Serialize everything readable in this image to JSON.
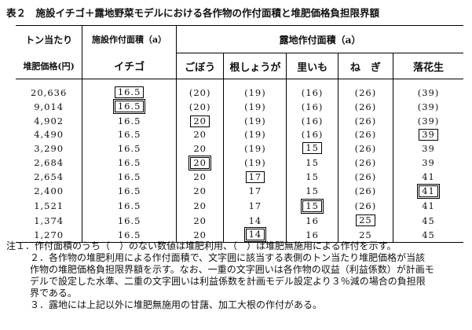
{
  "title": "表２　施設イチゴ＋露地野菜モデルにおける各作物の作付面積と堆肥価格負担限界額",
  "table": {
    "header": {
      "row1": [
        "トン当たり",
        "施設作付面積（a）",
        "露地作付面積（a）"
      ],
      "row2": [
        "堆肥価格(円)",
        "イチゴ",
        "ごぼう",
        "根しょうが",
        "里いも",
        "ね　ぎ",
        "落花生"
      ]
    },
    "rows": [
      [
        "20,636",
        {
          "text": "16.5",
          "box": "single"
        },
        "(20)",
        "(19)",
        "(16)",
        "(26)",
        "(39)"
      ],
      [
        "9,014",
        {
          "text": "16.5",
          "box": "double"
        },
        "(20)",
        "(19)",
        "(16)",
        "(26)",
        "(39)"
      ],
      [
        "4,902",
        "16.5",
        {
          "text": "20",
          "box": "single"
        },
        "(19)",
        "(16)",
        "(26)",
        "(39)"
      ],
      [
        "4,490",
        "16.5",
        "20",
        "(19)",
        "(16)",
        "(26)",
        {
          "text": "39",
          "box": "single"
        }
      ],
      [
        "3,290",
        "16.5",
        "20",
        "(19)",
        {
          "text": "15",
          "box": "single"
        },
        "(26)",
        "39"
      ],
      [
        "2,684",
        "16.5",
        {
          "text": "20",
          "box": "double"
        },
        "(19)",
        "15",
        "(26)",
        "39"
      ],
      [
        "2,654",
        "16.5",
        "20",
        {
          "text": "17",
          "box": "single"
        },
        "15",
        "(26)",
        "41"
      ],
      [
        "2,400",
        "16.5",
        "20",
        "17",
        "15",
        "(26)",
        {
          "text": "41",
          "box": "double"
        }
      ],
      [
        "1,521",
        "16.5",
        "20",
        "17",
        {
          "text": "15",
          "box": "double"
        },
        "(26)",
        "41"
      ],
      [
        "1,374",
        "16.5",
        "20",
        "14",
        "16",
        {
          "text": "25",
          "box": "single"
        },
        "45"
      ],
      [
        "1,270",
        "16.5",
        "20",
        {
          "text": "14",
          "box": "double"
        },
        "16",
        "25",
        "45"
      ]
    ]
  },
  "notes": [
    "注１．作付面積のうち（　）のない数値は堆肥利用、（　）は堆肥無施用による作付を示す。",
    "２．各作物の堆肥利用による作付面積で、文字囲に該当する表側のトン当たり堆肥価格が当該作物の堆肥価格負担限界額を示す。なお、一重の文字囲いは各作物の収益（利益係数）が計画モデルで設定した水準、二重の文字囲いは利益係数を計画モデル設定より３％減の場合の負担限界である。",
    "３．露地には上記以外に堆肥無施用の甘藷、加工大根の作付がある。"
  ]
}
